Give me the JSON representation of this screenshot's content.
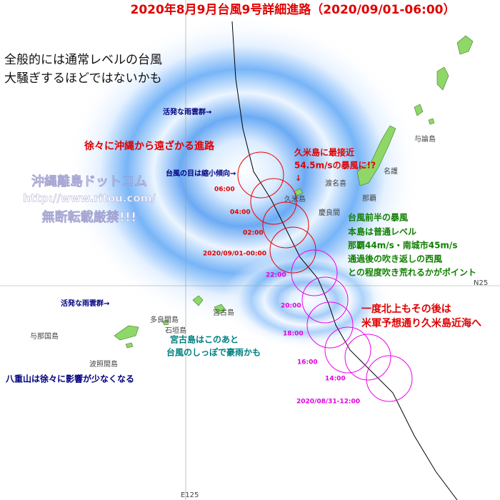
{
  "title": "2020年8月9月台風9号詳細進路（2020/09/01-06:00）",
  "summary": [
    "全般的には通常レベルの台風",
    "大騒ぎするほどではないかも"
  ],
  "watermark": [
    "沖縄離島ドットコム",
    "http://www.ritou.com/",
    "無断転載厳禁!!!"
  ],
  "notes": {
    "rain_top": "活発な雨雲群→",
    "rain_left": "活発な雨雲群→",
    "path": "徐々に沖縄から遠ざかる進路",
    "eye": "台風の目は縮小傾向→",
    "kume": [
      "久米島に最接近",
      "54.5m/sの暴風に!?",
      "↓"
    ],
    "main_island": [
      "台風前半の暴風",
      "本島は普通レベル",
      "那覇44m/s・南城市45m/s",
      "通過後の吹き返しの西風",
      "との程度吹き荒れるかがポイント"
    ],
    "forecast": [
      "一度北上もその後は",
      "米軍予想通り久米島近海へ"
    ],
    "miyako": [
      "宮古島はこのあと",
      "台風のしっぽで豪雨かも"
    ],
    "yaeyama": "八重山は徐々に影響が少なくなる"
  },
  "places": [
    "与論島",
    "名護",
    "渡名喜",
    "那覇",
    "久米島",
    "慶良間",
    "多良間島",
    "宮古島",
    "石垣島",
    "与那国島",
    "波照間島"
  ],
  "track": [
    "06:00",
    "04:00",
    "02:00",
    "2020/09/01-00:00",
    "22:00",
    "20:00",
    "18:00",
    "16:00",
    "14:00",
    "2020/08/31-12:00"
  ],
  "grid": [
    "N25",
    "E125"
  ]
}
